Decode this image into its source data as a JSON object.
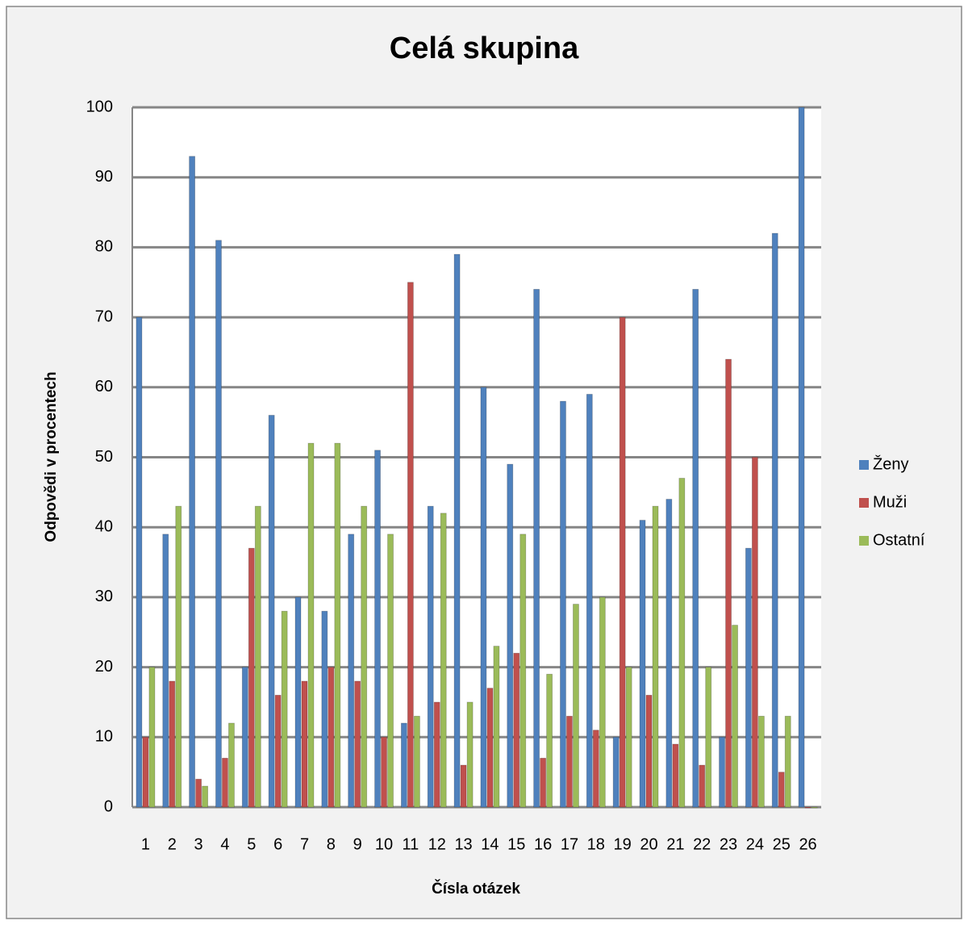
{
  "chart_data": {
    "type": "bar",
    "title": "Celá skupina",
    "x_label": "Čísla otázek",
    "y_label": "Odpovědi v procentech",
    "categories": [
      "1",
      "2",
      "3",
      "4",
      "5",
      "6",
      "7",
      "8",
      "9",
      "10",
      "11",
      "12",
      "13",
      "14",
      "15",
      "16",
      "17",
      "18",
      "19",
      "20",
      "21",
      "22",
      "23",
      "24",
      "25",
      "26"
    ],
    "series": [
      {
        "name": "Ženy",
        "color": "#4f81bd",
        "values": [
          70,
          39,
          93,
          81,
          20,
          56,
          30,
          28,
          39,
          51,
          12,
          43,
          79,
          60,
          49,
          74,
          58,
          59,
          10,
          41,
          44,
          74,
          10,
          37,
          82,
          100
        ]
      },
      {
        "name": "Muži",
        "color": "#c0504d",
        "values": [
          10,
          18,
          4,
          7,
          37,
          16,
          18,
          20,
          18,
          10,
          75,
          15,
          6,
          17,
          22,
          7,
          13,
          11,
          70,
          16,
          9,
          6,
          64,
          50,
          5,
          0
        ]
      },
      {
        "name": "Ostatní",
        "color": "#9bbb59",
        "values": [
          20,
          43,
          3,
          12,
          43,
          28,
          52,
          52,
          43,
          39,
          13,
          42,
          15,
          23,
          39,
          19,
          29,
          30,
          20,
          43,
          47,
          20,
          26,
          13,
          13,
          0
        ]
      }
    ],
    "ylim": [
      0,
      100
    ],
    "yticks": [
      0,
      10,
      20,
      30,
      40,
      50,
      60,
      70,
      80,
      90,
      100
    ],
    "grid": true,
    "legend": "right"
  }
}
